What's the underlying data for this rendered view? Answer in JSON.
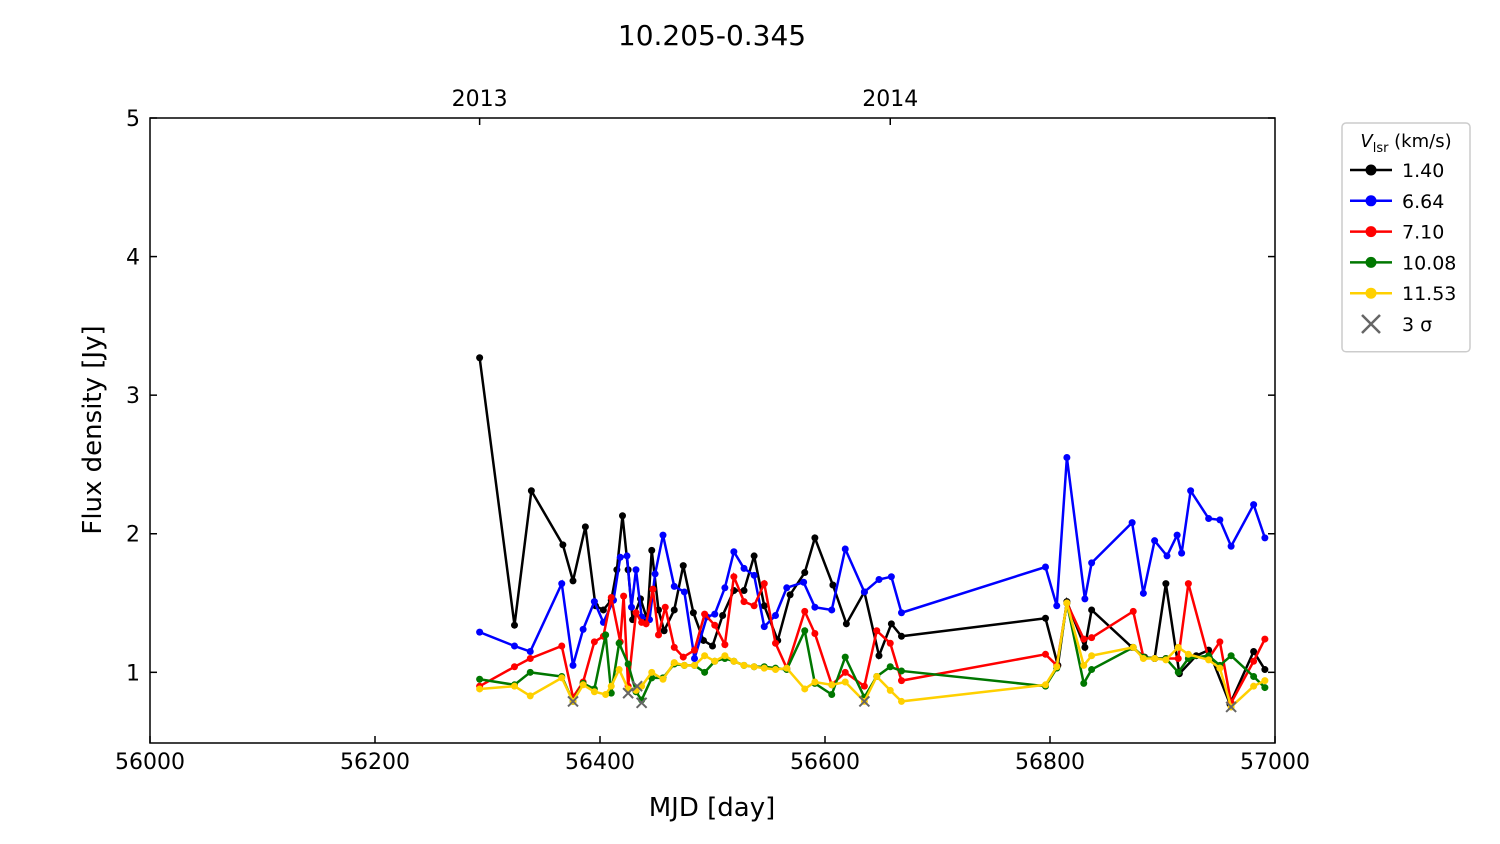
{
  "chart_data": {
    "type": "line",
    "title": "10.205-0.345",
    "xlabel": "MJD [day]",
    "ylabel": "Flux density [Jy]",
    "xlim": [
      56000,
      57000
    ],
    "ylim": [
      0.49,
      5
    ],
    "xticks": [
      56000,
      56200,
      56400,
      56600,
      56800,
      57000
    ],
    "yticks": [
      1,
      2,
      3,
      4,
      5
    ],
    "x2ticks": [
      {
        "value": 56293,
        "label": "2013"
      },
      {
        "value": 56658,
        "label": "2014"
      }
    ],
    "legend_title": {
      "symbol": "V",
      "sub": "lsr",
      "unit": " (km/s)"
    },
    "legend": "outside right",
    "series": [
      {
        "name": "1.40",
        "color": "#000000",
        "x": [
          56293,
          56324,
          56339,
          56367,
          56376,
          56387,
          56396,
          56403,
          56410,
          56415,
          56420,
          56425,
          56429,
          56436,
          56442,
          56446,
          56452,
          56457,
          56466,
          56474,
          56483,
          56492,
          56500,
          56509,
          56519,
          56528,
          56537,
          56546,
          56558,
          56569,
          56582,
          56591,
          56607,
          56619,
          56635,
          56648,
          56659,
          56668,
          56796,
          56807,
          56815,
          56831,
          56837,
          56873,
          56884,
          56893,
          56903,
          56915,
          56930,
          56941,
          56960,
          56981,
          56991
        ],
        "values": [
          3.27,
          1.34,
          2.31,
          1.92,
          1.66,
          2.05,
          1.48,
          1.45,
          1.52,
          1.74,
          2.13,
          1.74,
          1.38,
          1.53,
          1.38,
          1.88,
          1.45,
          1.3,
          1.45,
          1.77,
          1.43,
          1.23,
          1.19,
          1.41,
          1.59,
          1.59,
          1.84,
          1.48,
          1.23,
          1.56,
          1.72,
          1.97,
          1.63,
          1.35,
          1.58,
          1.12,
          1.35,
          1.26,
          1.39,
          1.05,
          1.51,
          1.18,
          1.45,
          1.18,
          1.11,
          1.1,
          1.64,
          0.99,
          1.12,
          1.16,
          0.77,
          1.15,
          1.02
        ]
      },
      {
        "name": "6.64",
        "color": "#0000ff",
        "x": [
          56293,
          56324,
          56338,
          56366,
          56376,
          56385,
          56395,
          56403,
          56412,
          56418,
          56424,
          56428,
          56432,
          56437,
          56444,
          56449,
          56456,
          56466,
          56475,
          56484,
          56495,
          56502,
          56511,
          56519,
          56528,
          56537,
          56546,
          56556,
          56566,
          56581,
          56591,
          56606,
          56618,
          56635,
          56648,
          56659,
          56668,
          56796,
          56806,
          56815,
          56831,
          56837,
          56873,
          56883,
          56893,
          56904,
          56913,
          56917,
          56925,
          56941,
          56951,
          56961,
          56981,
          56991
        ],
        "values": [
          1.29,
          1.19,
          1.15,
          1.64,
          1.05,
          1.31,
          1.51,
          1.36,
          1.52,
          1.83,
          1.84,
          1.47,
          1.74,
          1.4,
          1.38,
          1.71,
          1.99,
          1.62,
          1.58,
          1.1,
          1.4,
          1.42,
          1.61,
          1.87,
          1.75,
          1.7,
          1.33,
          1.41,
          1.61,
          1.65,
          1.47,
          1.45,
          1.89,
          1.58,
          1.67,
          1.69,
          1.43,
          1.76,
          1.48,
          2.55,
          1.53,
          1.79,
          2.08,
          1.57,
          1.95,
          1.84,
          1.99,
          1.86,
          2.31,
          2.11,
          2.1,
          1.91,
          2.21,
          1.97
        ]
      },
      {
        "name": "7.10",
        "color": "#ff0000",
        "x": [
          56293,
          56324,
          56338,
          56366,
          56376,
          56385,
          56395,
          56403,
          56410,
          56418,
          56421,
          56425,
          56432,
          56437,
          56441,
          56447,
          56452,
          56458,
          56466,
          56474,
          56484,
          56493,
          56502,
          56511,
          56519,
          56528,
          56537,
          56546,
          56556,
          56566,
          56582,
          56591,
          56606,
          56618,
          56635,
          56646,
          56658,
          56668,
          56796,
          56806,
          56815,
          56830,
          56837,
          56874,
          56883,
          56893,
          56903,
          56914,
          56923,
          56941,
          56951,
          56961,
          56981,
          56991
        ],
        "values": [
          0.9,
          1.04,
          1.1,
          1.19,
          0.82,
          0.93,
          1.22,
          1.26,
          1.54,
          1.22,
          1.55,
          0.9,
          1.43,
          1.36,
          1.35,
          1.6,
          1.27,
          1.47,
          1.18,
          1.11,
          1.16,
          1.42,
          1.34,
          1.2,
          1.69,
          1.51,
          1.48,
          1.64,
          1.21,
          1.03,
          1.44,
          1.28,
          0.91,
          1.0,
          0.9,
          1.3,
          1.21,
          0.94,
          1.13,
          1.05,
          1.5,
          1.24,
          1.25,
          1.44,
          1.11,
          1.1,
          1.1,
          1.1,
          1.64,
          1.1,
          1.22,
          0.78,
          1.08,
          1.24
        ]
      },
      {
        "name": "10.08",
        "color": "#007700",
        "x": [
          56293,
          56324,
          56338,
          56366,
          56376,
          56385,
          56395,
          56405,
          56410,
          56417,
          56425,
          56432,
          56437,
          56446,
          56456,
          56466,
          56475,
          56484,
          56493,
          56502,
          56511,
          56519,
          56528,
          56537,
          56546,
          56556,
          56566,
          56582,
          56591,
          56606,
          56618,
          56635,
          56646,
          56658,
          56668,
          56796,
          56806,
          56815,
          56830,
          56837,
          56874,
          56883,
          56893,
          56903,
          56914,
          56923,
          56941,
          56951,
          56961,
          56981,
          56991
        ],
        "values": [
          0.95,
          0.91,
          1.0,
          0.97,
          0.79,
          0.92,
          0.88,
          1.27,
          0.85,
          1.21,
          1.06,
          0.86,
          0.8,
          0.96,
          0.96,
          1.06,
          1.05,
          1.05,
          1.0,
          1.08,
          1.1,
          1.08,
          1.05,
          1.04,
          1.04,
          1.03,
          1.02,
          1.3,
          0.92,
          0.84,
          1.11,
          0.82,
          0.97,
          1.04,
          1.01,
          0.9,
          1.03,
          1.5,
          0.92,
          1.02,
          1.18,
          1.11,
          1.1,
          1.1,
          1.0,
          1.1,
          1.12,
          1.05,
          1.12,
          0.97,
          0.89
        ]
      },
      {
        "name": "11.53",
        "color": "#ffd000",
        "x": [
          56293,
          56324,
          56338,
          56366,
          56376,
          56385,
          56395,
          56405,
          56410,
          56417,
          56425,
          56432,
          56437,
          56446,
          56456,
          56466,
          56475,
          56484,
          56493,
          56502,
          56511,
          56519,
          56528,
          56537,
          56546,
          56556,
          56566,
          56582,
          56591,
          56606,
          56618,
          56635,
          56646,
          56658,
          56668,
          56796,
          56806,
          56815,
          56830,
          56837,
          56874,
          56883,
          56893,
          56903,
          56914,
          56923,
          56941,
          56951,
          56961,
          56981,
          56991
        ],
        "values": [
          0.88,
          0.9,
          0.83,
          0.96,
          0.79,
          0.91,
          0.86,
          0.84,
          0.9,
          1.02,
          0.88,
          0.87,
          0.9,
          1.0,
          0.95,
          1.07,
          1.05,
          1.05,
          1.12,
          1.08,
          1.12,
          1.08,
          1.05,
          1.04,
          1.03,
          1.02,
          1.03,
          0.88,
          0.93,
          0.91,
          0.93,
          0.79,
          0.97,
          0.87,
          0.79,
          0.91,
          1.04,
          1.5,
          1.05,
          1.12,
          1.18,
          1.1,
          1.1,
          1.09,
          1.18,
          1.13,
          1.09,
          1.03,
          0.75,
          0.9,
          0.94
        ]
      },
      {
        "name": "3 σ",
        "color": "#666666",
        "marker": "x",
        "x": [
          56425,
          56433,
          56437,
          56376,
          56635,
          56961
        ],
        "values": [
          0.85,
          0.9,
          0.78,
          0.79,
          0.79,
          0.75
        ]
      }
    ]
  }
}
